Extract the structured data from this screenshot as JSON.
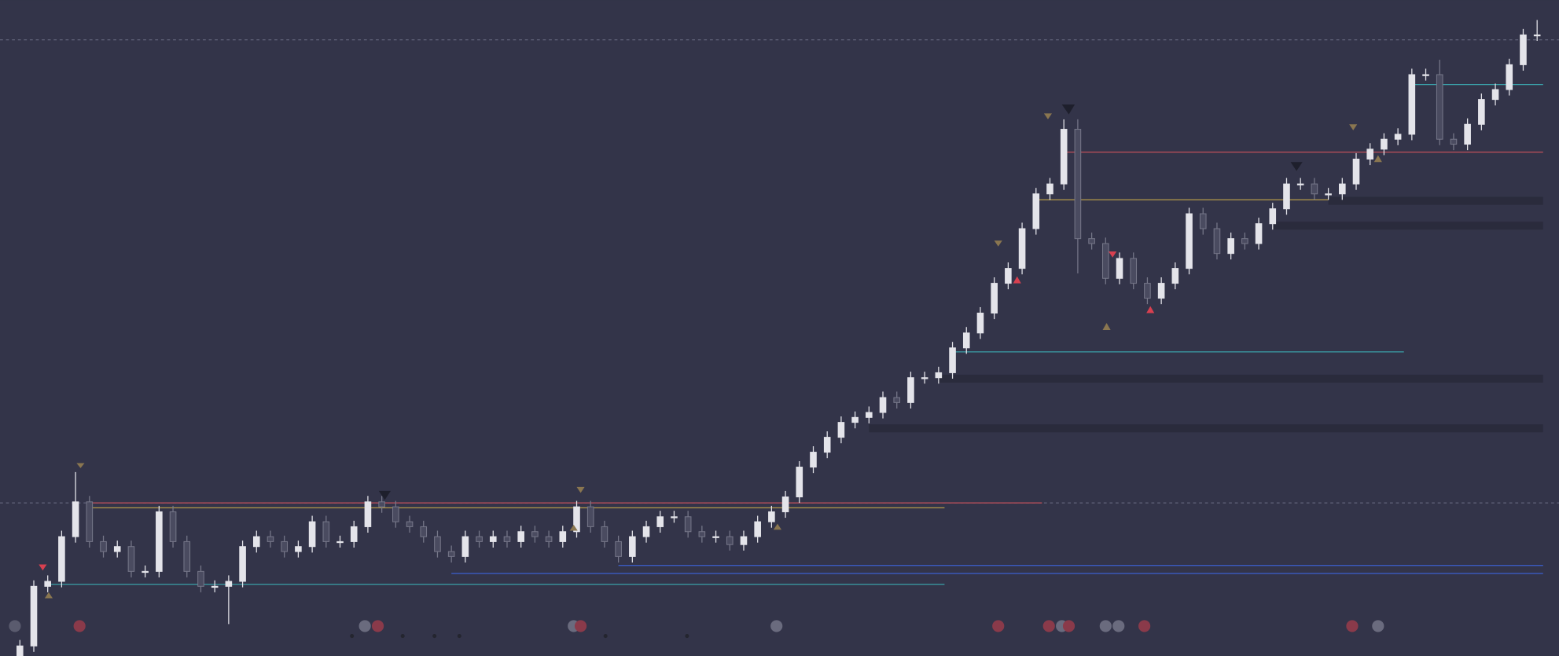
{
  "chart_data": {
    "type": "candlestick",
    "open": [
      0,
      10,
      70,
      75,
      120,
      155,
      115,
      105,
      110,
      85,
      85,
      145,
      115,
      85,
      70,
      70,
      75,
      110,
      120,
      115,
      105,
      110,
      135,
      115,
      115,
      130,
      155,
      150,
      135,
      130,
      120,
      105,
      100,
      120,
      115,
      120,
      115,
      125,
      120,
      115,
      125,
      150,
      130,
      115,
      100,
      120,
      130,
      140,
      140,
      125,
      120,
      120,
      112,
      120,
      135,
      145,
      160,
      190,
      205,
      220,
      235,
      240,
      245,
      260,
      255,
      280,
      280,
      285,
      310,
      325,
      345,
      375,
      390,
      430,
      465,
      475,
      530,
      420,
      415,
      380,
      400,
      375,
      360,
      375,
      390,
      445,
      430,
      405,
      420,
      415,
      435,
      450,
      475,
      475,
      465,
      465,
      475,
      500,
      510,
      520,
      525,
      585,
      585,
      520,
      515,
      535,
      560,
      570,
      595,
      625
    ],
    "high": [
      16,
      76,
      81,
      126,
      185,
      161,
      121,
      116,
      116,
      91,
      151,
      151,
      121,
      91,
      76,
      81,
      116,
      126,
      126,
      121,
      116,
      141,
      141,
      121,
      136,
      161,
      161,
      156,
      141,
      136,
      126,
      111,
      126,
      126,
      126,
      126,
      131,
      131,
      126,
      131,
      156,
      156,
      136,
      121,
      126,
      136,
      146,
      146,
      146,
      131,
      126,
      126,
      126,
      141,
      151,
      166,
      196,
      211,
      226,
      241,
      246,
      251,
      266,
      266,
      286,
      286,
      291,
      316,
      331,
      351,
      381,
      396,
      436,
      471,
      481,
      540,
      540,
      426,
      421,
      406,
      406,
      381,
      381,
      396,
      451,
      451,
      436,
      426,
      426,
      441,
      456,
      481,
      481,
      481,
      471,
      481,
      506,
      516,
      526,
      531,
      591,
      591,
      600,
      526,
      541,
      566,
      576,
      601,
      631,
      640
    ],
    "low": [
      0,
      4,
      64,
      69,
      114,
      109,
      99,
      99,
      79,
      79,
      79,
      109,
      79,
      64,
      64,
      32,
      69,
      104,
      109,
      99,
      99,
      104,
      109,
      109,
      109,
      124,
      144,
      129,
      124,
      114,
      99,
      94,
      94,
      109,
      109,
      109,
      109,
      114,
      109,
      109,
      119,
      124,
      109,
      94,
      94,
      114,
      124,
      134,
      119,
      114,
      114,
      106,
      106,
      114,
      129,
      139,
      154,
      184,
      199,
      214,
      229,
      234,
      239,
      249,
      249,
      274,
      274,
      279,
      304,
      319,
      339,
      369,
      384,
      424,
      459,
      469,
      385,
      409,
      374,
      374,
      369,
      354,
      354,
      369,
      384,
      424,
      399,
      399,
      409,
      409,
      429,
      444,
      469,
      459,
      459,
      459,
      469,
      494,
      504,
      514,
      519,
      579,
      514,
      509,
      509,
      529,
      554,
      564,
      589,
      619
    ],
    "close": [
      10,
      70,
      75,
      120,
      155,
      115,
      105,
      110,
      85,
      85,
      145,
      115,
      85,
      70,
      70,
      75,
      110,
      120,
      115,
      105,
      110,
      135,
      115,
      115,
      130,
      155,
      150,
      135,
      130,
      120,
      105,
      100,
      120,
      115,
      120,
      115,
      125,
      120,
      115,
      125,
      150,
      130,
      115,
      100,
      120,
      130,
      140,
      140,
      125,
      120,
      120,
      112,
      120,
      135,
      145,
      160,
      190,
      205,
      220,
      235,
      240,
      245,
      260,
      255,
      280,
      280,
      285,
      310,
      325,
      345,
      375,
      390,
      430,
      465,
      475,
      530,
      420,
      415,
      380,
      400,
      375,
      360,
      375,
      390,
      445,
      430,
      405,
      420,
      415,
      435,
      450,
      475,
      475,
      465,
      465,
      475,
      500,
      510,
      520,
      525,
      585,
      585,
      520,
      515,
      535,
      560,
      570,
      595,
      625,
      625
    ],
    "ylim": [
      0,
      660
    ],
    "up_color": "#e4e4ea",
    "down_color": "#767789",
    "levels": [
      {
        "value": 620,
        "style": "guide",
        "color": "#6d6e85"
      },
      {
        "value": 154,
        "style": "guide",
        "color": "#6d6e85"
      },
      {
        "value": 154,
        "from": 5,
        "to": 73,
        "style": "line",
        "color": "#c0505a"
      },
      {
        "value": 149,
        "from": 5,
        "to": 66,
        "style": "line",
        "color": "#b59a4a"
      },
      {
        "value": 72,
        "from": 2,
        "to": 66,
        "style": "line",
        "color": "#3a9fa8"
      },
      {
        "value": 91,
        "from": 43,
        "to": 109,
        "style": "line",
        "color": "#3b5fcf"
      },
      {
        "value": 83,
        "from": 31,
        "to": 109,
        "style": "line",
        "color": "#3b5fcf"
      },
      {
        "value": 306,
        "from": 67,
        "to": 99,
        "style": "line",
        "color": "#3a9fa8"
      },
      {
        "value": 459,
        "from": 73,
        "to": 107,
        "style": "line",
        "color": "#b59a4a"
      },
      {
        "value": 507,
        "from": 75,
        "to": 109,
        "style": "line",
        "color": "#c0505a"
      },
      {
        "value": 575,
        "from": 100,
        "to": 109,
        "style": "line",
        "color": "#3a9fa8"
      },
      {
        "value": 279,
        "from": 66,
        "to": 109,
        "style": "band",
        "color": "#2a2b3c"
      },
      {
        "value": 229,
        "from": 61,
        "to": 109,
        "style": "band",
        "color": "#2a2b3c"
      },
      {
        "value": 433,
        "from": 90,
        "to": 109,
        "style": "band",
        "color": "#2a2b3c"
      },
      {
        "value": 458,
        "from": 94,
        "to": 109,
        "style": "band",
        "color": "#2a2b3c"
      }
    ]
  }
}
